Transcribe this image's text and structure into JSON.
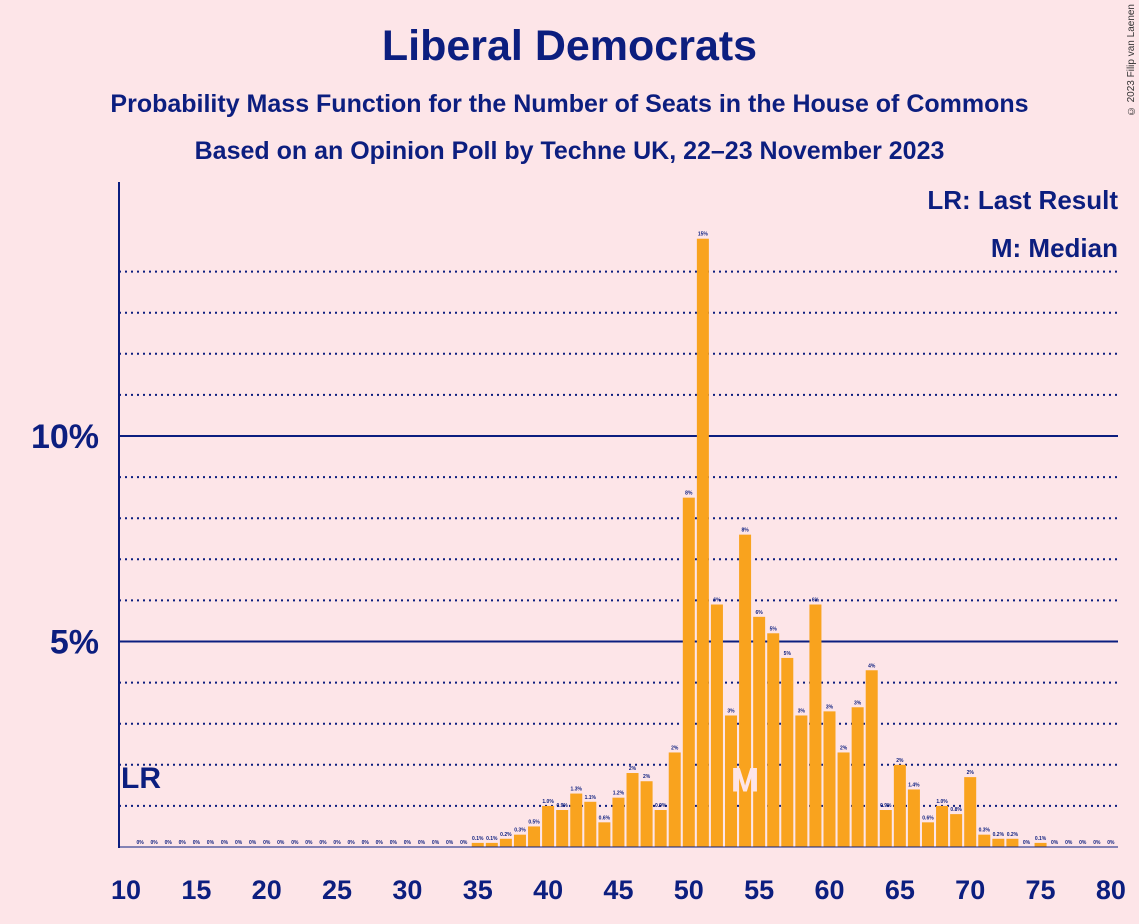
{
  "title": "Liberal Democrats",
  "subtitle1": "Probability Mass Function for the Number of Seats in the House of Commons",
  "subtitle2": "Based on an Opinion Poll by Techne UK, 22–23 November 2023",
  "copyright": "© 2023 Filip van Laenen",
  "colors": {
    "background": "#fde5e8",
    "bar": "#f9a31e",
    "text": "#0c1e7f"
  },
  "chart_data": {
    "type": "bar",
    "xlim": [
      10,
      80
    ],
    "ylim": [
      0,
      16
    ],
    "x_ticks": [
      10,
      15,
      20,
      25,
      30,
      35,
      40,
      45,
      50,
      55,
      60,
      65,
      70,
      75,
      80
    ],
    "x_tick_labels": [
      "10",
      "15",
      "20",
      "25",
      "30",
      "35",
      "40",
      "45",
      "50",
      "55",
      "60",
      "65",
      "70",
      "75",
      "80"
    ],
    "y_major_ticks": [
      5,
      10
    ],
    "y_tick_labels": [
      "5%",
      "10%"
    ],
    "y_minor_gridlines": [
      1,
      2,
      3,
      4,
      6,
      7,
      8,
      9,
      11,
      12,
      13,
      14
    ],
    "legend": [
      "LR: Last Result",
      "M: Median"
    ],
    "last_result": {
      "x": 11,
      "label": "LR"
    },
    "median": {
      "x": 54,
      "label": "M"
    },
    "x": [
      11,
      12,
      13,
      14,
      15,
      16,
      17,
      18,
      19,
      20,
      21,
      22,
      23,
      24,
      25,
      26,
      27,
      28,
      29,
      30,
      31,
      32,
      33,
      34,
      35,
      36,
      37,
      38,
      39,
      40,
      41,
      42,
      43,
      44,
      45,
      46,
      47,
      48,
      49,
      50,
      51,
      52,
      53,
      54,
      55,
      56,
      57,
      58,
      59,
      60,
      61,
      62,
      63,
      64,
      65,
      66,
      67,
      68,
      69,
      70,
      71,
      72,
      73,
      74,
      75,
      76,
      77,
      78,
      79,
      80
    ],
    "values": [
      0,
      0,
      0,
      0,
      0,
      0,
      0,
      0,
      0,
      0,
      0,
      0,
      0,
      0,
      0,
      0,
      0,
      0,
      0,
      0,
      0,
      0,
      0,
      0,
      0.1,
      0.1,
      0.2,
      0.3,
      0.5,
      1.0,
      0.9,
      1.3,
      1.1,
      0.6,
      1.2,
      1.8,
      1.6,
      0.9,
      2.3,
      8.5,
      14.8,
      5.9,
      3.2,
      7.6,
      5.6,
      5.2,
      4.6,
      3.2,
      5.9,
      3.3,
      2.3,
      3.4,
      4.3,
      0.9,
      2.0,
      1.4,
      0.6,
      1.0,
      0.8,
      1.7,
      0.3,
      0.2,
      0.2,
      0,
      0.1,
      0,
      0,
      0,
      0,
      0
    ],
    "labels": [
      "0%",
      "0%",
      "0%",
      "0%",
      "0%",
      "0%",
      "0%",
      "0%",
      "0%",
      "0%",
      "0%",
      "0%",
      "0%",
      "0%",
      "0%",
      "0%",
      "0%",
      "0%",
      "0%",
      "0%",
      "0%",
      "0%",
      "0%",
      "0%",
      "0.1%",
      "0.1%",
      "0.2%",
      "0.3%",
      "0.5%",
      "1.0%",
      "0.9%",
      "1.3%",
      "1.1%",
      "0.6%",
      "1.2%",
      "2%",
      "2%",
      "0.9%",
      "2%",
      "8%",
      "15%",
      "6%",
      "3%",
      "8%",
      "6%",
      "5%",
      "5%",
      "3%",
      "6%",
      "3%",
      "2%",
      "3%",
      "4%",
      "0.9%",
      "2%",
      "1.4%",
      "0.6%",
      "1.0%",
      "0.8%",
      "2%",
      "0.3%",
      "0.2%",
      "0.2%",
      "0%",
      "0.1%",
      "0%",
      "0%",
      "0%",
      "0%",
      "0%"
    ]
  }
}
